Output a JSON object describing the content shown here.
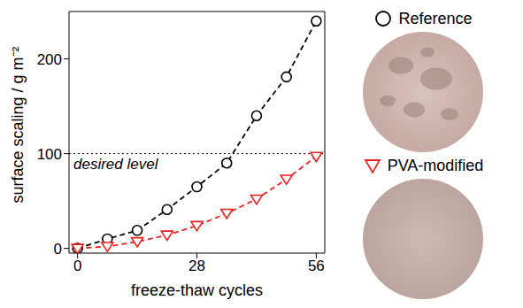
{
  "chart_data": {
    "type": "line",
    "x_label": "freeze-thaw cycles",
    "y_label": "surface scaling / g m⁻²",
    "x": [
      0,
      7,
      14,
      21,
      28,
      35,
      42,
      49,
      56
    ],
    "series": [
      {
        "name": "Reference",
        "color": "#000000",
        "marker": "circle",
        "line_style": "dashed",
        "values": [
          0,
          10,
          19,
          41,
          65,
          90,
          140,
          181,
          240
        ]
      },
      {
        "name": "PVA-modified",
        "color": "#e8211c",
        "marker": "triangle-down",
        "line_style": "dashed",
        "values": [
          0,
          2,
          7,
          14,
          24,
          37,
          52,
          73,
          97
        ]
      }
    ],
    "xlim": [
      -2,
      58
    ],
    "ylim": [
      -5,
      250
    ],
    "xticks": [
      0,
      28,
      56
    ],
    "yticks": [
      0,
      100,
      200
    ],
    "annotations": [
      {
        "text": "desired level",
        "y": 100,
        "line_style": "dotted"
      }
    ],
    "legend": "right"
  }
}
